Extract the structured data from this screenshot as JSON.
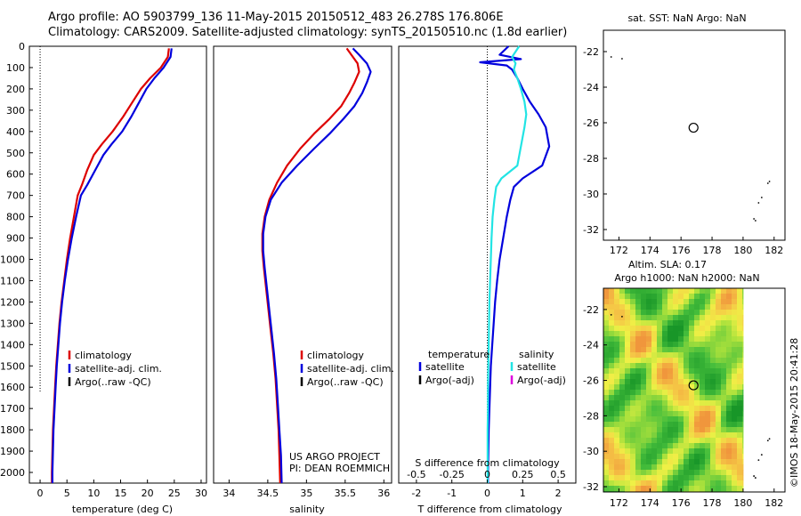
{
  "header": {
    "title_line1": "Argo profile: AO 5903799_136 11-May-2015 20150512_483 26.278S 176.806E",
    "title_line2": "Climatology: CARS2009. Satellite-adjusted climatology: synTS_20150510.nc (1.8d earlier)"
  },
  "colors": {
    "climatology": "#dd0000",
    "satellite": "#0000dd",
    "satellite_salinity": "#22e4e4",
    "argo": "#000000",
    "argo_adj_salinity": "#dd00dd"
  },
  "chart_data": [
    {
      "type": "line",
      "title": "",
      "xlabel": "temperature (deg C)",
      "ylabel": "",
      "xlim": [
        -2,
        31
      ],
      "ylim": [
        2050,
        0
      ],
      "y_reversed": true,
      "xticks": [
        "0",
        "5",
        "10",
        "15",
        "20",
        "25",
        "30"
      ],
      "xtick_values": [
        0,
        5,
        10,
        15,
        20,
        25,
        30
      ],
      "yticks": [
        "0",
        "100",
        "200",
        "300",
        "400",
        "500",
        "600",
        "700",
        "800",
        "900",
        "1000",
        "1100",
        "1200",
        "1300",
        "1400",
        "1500",
        "1600",
        "1700",
        "1800",
        "1900",
        "2000"
      ],
      "ytick_values": [
        0,
        100,
        200,
        300,
        400,
        500,
        600,
        700,
        800,
        900,
        1000,
        1100,
        1200,
        1300,
        1400,
        1500,
        1600,
        1700,
        1800,
        1900,
        2000
      ],
      "legend_position": "lower-middle",
      "legend": [
        "climatology",
        "satellite-adj. clim.",
        "Argo(..raw -QC)"
      ],
      "reference_line": {
        "x": 0,
        "y_from": 0,
        "y_to": 1620
      },
      "series": [
        {
          "name": "climatology",
          "color": "red",
          "points": [
            [
              24.0,
              10
            ],
            [
              23.8,
              50
            ],
            [
              22.5,
              100
            ],
            [
              20.5,
              150
            ],
            [
              18.8,
              200
            ],
            [
              17.0,
              270
            ],
            [
              15.5,
              330
            ],
            [
              13.5,
              400
            ],
            [
              11.5,
              460
            ],
            [
              10.0,
              510
            ],
            [
              8.8,
              580
            ],
            [
              7.8,
              650
            ],
            [
              7.0,
              700
            ],
            [
              6.3,
              800
            ],
            [
              5.6,
              900
            ],
            [
              5.0,
              1000
            ],
            [
              4.5,
              1100
            ],
            [
              4.0,
              1200
            ],
            [
              3.6,
              1300
            ],
            [
              3.3,
              1400
            ],
            [
              3.0,
              1500
            ],
            [
              2.8,
              1600
            ],
            [
              2.6,
              1700
            ],
            [
              2.4,
              1800
            ],
            [
              2.3,
              1900
            ],
            [
              2.2,
              2000
            ],
            [
              2.2,
              2050
            ]
          ]
        },
        {
          "name": "satellite-adj. clim.",
          "color": "blue",
          "points": [
            [
              24.5,
              10
            ],
            [
              24.3,
              50
            ],
            [
              23.0,
              100
            ],
            [
              21.3,
              150
            ],
            [
              19.8,
              200
            ],
            [
              18.3,
              270
            ],
            [
              17.0,
              330
            ],
            [
              15.3,
              400
            ],
            [
              13.3,
              460
            ],
            [
              11.8,
              510
            ],
            [
              10.3,
              580
            ],
            [
              8.8,
              650
            ],
            [
              7.6,
              700
            ],
            [
              6.7,
              800
            ],
            [
              5.9,
              900
            ],
            [
              5.2,
              1000
            ],
            [
              4.6,
              1100
            ],
            [
              4.1,
              1200
            ],
            [
              3.7,
              1300
            ],
            [
              3.4,
              1400
            ],
            [
              3.1,
              1500
            ],
            [
              2.9,
              1600
            ],
            [
              2.7,
              1700
            ],
            [
              2.5,
              1800
            ],
            [
              2.4,
              1900
            ],
            [
              2.3,
              2000
            ],
            [
              2.3,
              2050
            ]
          ]
        }
      ]
    },
    {
      "type": "line",
      "title": "",
      "xlabel": "salinity",
      "ylabel": "",
      "xlim": [
        33.8,
        36.1
      ],
      "ylim": [
        2050,
        0
      ],
      "y_reversed": true,
      "xticks": [
        "34",
        "34.5",
        "35",
        "35.5",
        "36"
      ],
      "xtick_values": [
        34,
        34.5,
        35,
        35.5,
        36
      ],
      "legend_position": "lower-middle",
      "legend": [
        "climatology",
        "satellite-adj. clim.",
        "Argo(..raw -QC)"
      ],
      "annotation": [
        "US ARGO PROJECT",
        "PI: DEAN ROEMMICH"
      ],
      "series": [
        {
          "name": "climatology",
          "color": "red",
          "points": [
            [
              35.52,
              10
            ],
            [
              35.58,
              40
            ],
            [
              35.66,
              80
            ],
            [
              35.68,
              120
            ],
            [
              35.62,
              170
            ],
            [
              35.55,
              220
            ],
            [
              35.45,
              280
            ],
            [
              35.3,
              340
            ],
            [
              35.1,
              410
            ],
            [
              34.92,
              480
            ],
            [
              34.75,
              560
            ],
            [
              34.62,
              640
            ],
            [
              34.52,
              720
            ],
            [
              34.46,
              800
            ],
            [
              34.43,
              880
            ],
            [
              34.43,
              960
            ],
            [
              34.45,
              1040
            ],
            [
              34.48,
              1140
            ],
            [
              34.51,
              1240
            ],
            [
              34.54,
              1340
            ],
            [
              34.57,
              1440
            ],
            [
              34.6,
              1560
            ],
            [
              34.62,
              1680
            ],
            [
              34.64,
              1800
            ],
            [
              34.65,
              1920
            ],
            [
              34.66,
              2050
            ]
          ]
        },
        {
          "name": "satellite-adj. clim.",
          "color": "blue",
          "points": [
            [
              35.6,
              10
            ],
            [
              35.68,
              40
            ],
            [
              35.78,
              80
            ],
            [
              35.83,
              120
            ],
            [
              35.78,
              170
            ],
            [
              35.72,
              220
            ],
            [
              35.62,
              280
            ],
            [
              35.48,
              340
            ],
            [
              35.3,
              410
            ],
            [
              35.1,
              480
            ],
            [
              34.88,
              560
            ],
            [
              34.68,
              640
            ],
            [
              34.54,
              720
            ],
            [
              34.47,
              800
            ],
            [
              34.44,
              880
            ],
            [
              34.44,
              960
            ],
            [
              34.46,
              1040
            ],
            [
              34.49,
              1140
            ],
            [
              34.52,
              1240
            ],
            [
              34.55,
              1340
            ],
            [
              34.58,
              1440
            ],
            [
              34.61,
              1560
            ],
            [
              34.63,
              1680
            ],
            [
              34.65,
              1800
            ],
            [
              34.67,
              1920
            ],
            [
              34.68,
              2050
            ]
          ]
        }
      ]
    },
    {
      "type": "line",
      "title": "",
      "xlabel": "T difference from climatology",
      "xlabel_top": "S difference from climatology",
      "ylabel": "",
      "xlim": [
        -2.5,
        2.5
      ],
      "ylim": [
        2050,
        0
      ],
      "y_reversed": true,
      "xticks": [
        "-2",
        "-1",
        "0",
        "1",
        "2"
      ],
      "xtick_values": [
        -2,
        -1,
        0,
        1,
        2
      ],
      "xticks_top": [
        "-0.5",
        "-0.25",
        "0",
        "0.25",
        "0.5"
      ],
      "xticks_top_values": [
        -0.5,
        -0.25,
        0,
        0.25,
        0.5
      ],
      "legend_position": "lower-middle",
      "legend_groups": [
        {
          "header": "temperature",
          "items": [
            "satellite",
            "Argo(-adj)"
          ]
        },
        {
          "header": "salinity",
          "items": [
            "satellite",
            "Argo(-adj)"
          ]
        }
      ],
      "series": [
        {
          "name": "temperature satellite",
          "color": "blue",
          "points": [
            [
              0.6,
              0
            ],
            [
              0.35,
              40
            ],
            [
              0.95,
              60
            ],
            [
              -0.2,
              75
            ],
            [
              0.55,
              90
            ],
            [
              0.7,
              110
            ],
            [
              0.85,
              150
            ],
            [
              1.0,
              200
            ],
            [
              1.2,
              260
            ],
            [
              1.45,
              320
            ],
            [
              1.65,
              380
            ],
            [
              1.75,
              470
            ],
            [
              1.55,
              560
            ],
            [
              1.0,
              620
            ],
            [
              0.75,
              660
            ],
            [
              0.65,
              720
            ],
            [
              0.55,
              800
            ],
            [
              0.45,
              900
            ],
            [
              0.35,
              1000
            ],
            [
              0.28,
              1100
            ],
            [
              0.22,
              1200
            ],
            [
              0.18,
              1300
            ],
            [
              0.14,
              1400
            ],
            [
              0.1,
              1500
            ],
            [
              0.08,
              1600
            ],
            [
              0.06,
              1700
            ],
            [
              0.04,
              1800
            ],
            [
              0.03,
              1900
            ],
            [
              0.02,
              2000
            ],
            [
              0.02,
              2050
            ]
          ]
        },
        {
          "name": "salinity satellite",
          "color": "cyan",
          "points": [
            [
              0.9,
              0
            ],
            [
              0.7,
              50
            ],
            [
              0.8,
              80
            ],
            [
              0.75,
              110
            ],
            [
              0.85,
              150
            ],
            [
              0.95,
              200
            ],
            [
              1.05,
              260
            ],
            [
              1.1,
              320
            ],
            [
              1.05,
              380
            ],
            [
              0.95,
              470
            ],
            [
              0.85,
              560
            ],
            [
              0.4,
              620
            ],
            [
              0.25,
              660
            ],
            [
              0.2,
              720
            ],
            [
              0.15,
              800
            ],
            [
              0.12,
              900
            ],
            [
              0.1,
              1000
            ],
            [
              0.08,
              1100
            ],
            [
              0.06,
              1200
            ],
            [
              0.05,
              1300
            ],
            [
              0.04,
              1400
            ],
            [
              0.03,
              1500
            ],
            [
              0.02,
              1600
            ],
            [
              0.02,
              1700
            ],
            [
              0.01,
              1800
            ],
            [
              0.01,
              1900
            ],
            [
              0.01,
              2000
            ],
            [
              0.01,
              2050
            ]
          ]
        }
      ]
    },
    {
      "type": "scatter",
      "title": "sat. SST: NaN Argo: NaN",
      "xlabel": "",
      "ylabel": "",
      "xlim": [
        171,
        182.7
      ],
      "ylim": [
        -32.6,
        -20.8
      ],
      "xticks": [
        "172",
        "174",
        "176",
        "178",
        "180",
        "182"
      ],
      "xtick_values": [
        172,
        174,
        176,
        178,
        180,
        182
      ],
      "yticks": [
        "-22",
        "-24",
        "-26",
        "-28",
        "-30",
        "-32"
      ],
      "ytick_values": [
        -22,
        -24,
        -26,
        -28,
        -30,
        -32
      ],
      "marker": {
        "lon": 176.806,
        "lat": -26.278
      },
      "islands": [
        [
          171.5,
          -22.3
        ],
        [
          172.2,
          -22.4
        ],
        [
          181.7,
          -29.3
        ],
        [
          181.6,
          -29.4
        ],
        [
          181.2,
          -30.2
        ],
        [
          181.0,
          -30.5
        ],
        [
          180.7,
          -31.4
        ],
        [
          180.8,
          -31.5
        ]
      ]
    },
    {
      "type": "heatmap",
      "title_line1": "Altim. SLA: 0.17",
      "title_line2": "Argo h1000: NaN h2000: NaN",
      "xlabel": "",
      "ylabel": "",
      "xlim": [
        171,
        182.7
      ],
      "ylim": [
        -32.3,
        -20.8
      ],
      "xticks": [
        "172",
        "174",
        "176",
        "178",
        "180",
        "182"
      ],
      "xtick_values": [
        172,
        174,
        176,
        178,
        180,
        182
      ],
      "yticks": [
        "-22",
        "-24",
        "-26",
        "-28",
        "-30",
        "-32"
      ],
      "ytick_values": [
        -22,
        -24,
        -26,
        -28,
        -30,
        -32
      ],
      "data_lon_range": [
        171,
        180
      ],
      "marker": {
        "lon": 176.806,
        "lat": -26.278
      }
    }
  ],
  "credit": "©IMOS 18-May-2015 20:41:28"
}
